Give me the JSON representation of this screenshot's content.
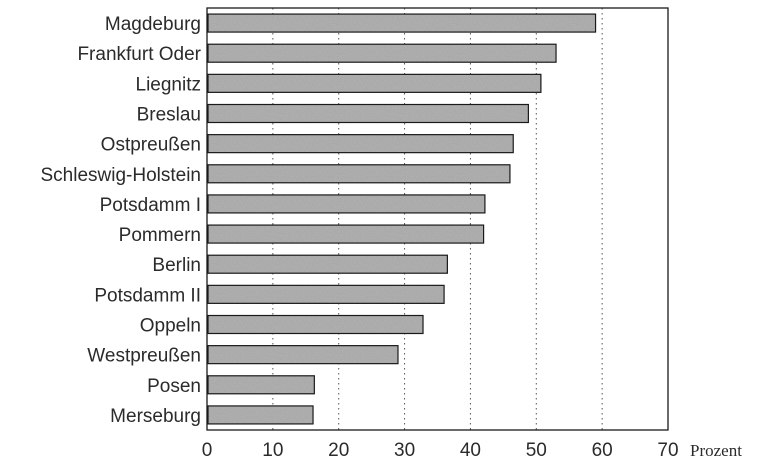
{
  "chart_data": {
    "type": "bar",
    "orientation": "horizontal",
    "categories": [
      "Magdeburg",
      "Frankfurt Oder",
      "Liegnitz",
      "Breslau",
      "Ostpreußen",
      "Schleswig-Holstein",
      "Potsdamm I",
      "Pommern",
      "Berlin",
      "Potsdamm II",
      "Oppeln",
      "Westpreußen",
      "Posen",
      "Merseburg"
    ],
    "values": [
      59,
      53,
      50.7,
      48.8,
      46.5,
      46,
      42.2,
      42,
      36.5,
      36,
      32.8,
      29,
      16.3,
      16.1
    ],
    "xlim": [
      0,
      70
    ],
    "xticks": [
      "0",
      "10",
      "20",
      "30",
      "40",
      "50",
      "60",
      "70"
    ],
    "xlabel": "Prozent",
    "grid": "vertical dotted",
    "bar_color": "#b3b3b3",
    "frame_color": "#1a1a1a"
  }
}
